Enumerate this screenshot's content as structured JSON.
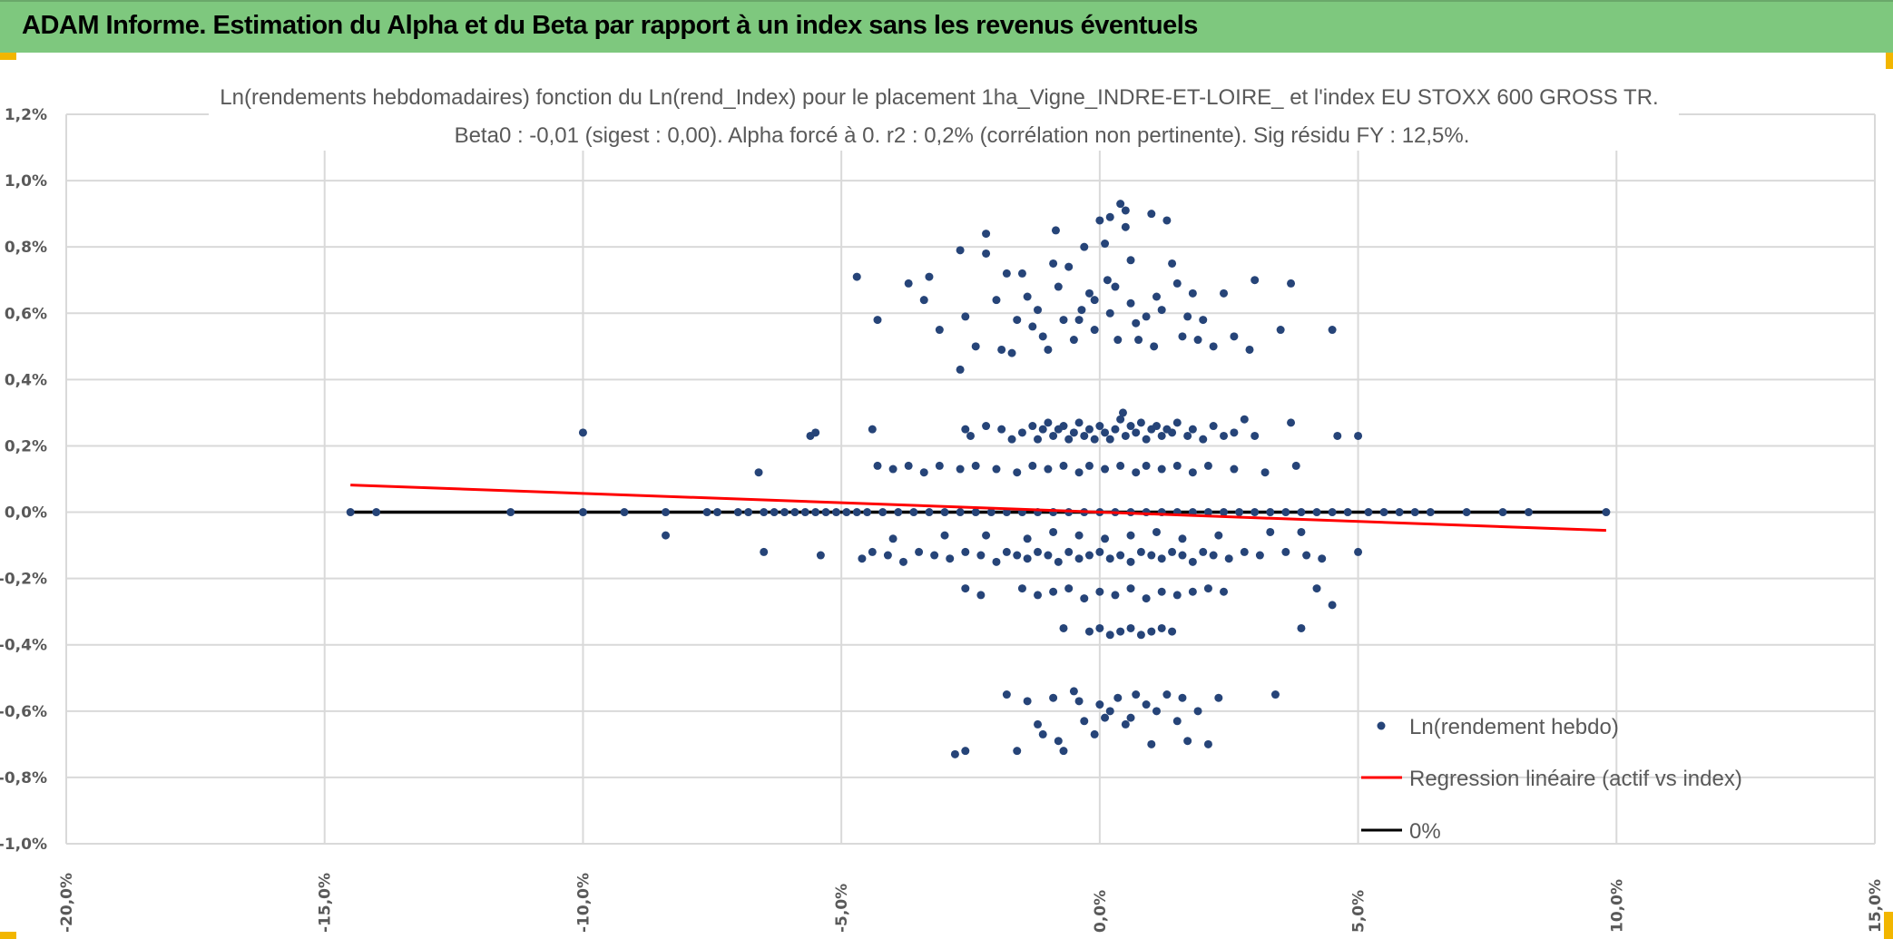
{
  "header": {
    "title": "ADAM Informe. Estimation du Alpha et du Beta par rapport à un index sans les revenus éventuels"
  },
  "colors": {
    "header_bg": "#7ec87e",
    "points": "#264478",
    "regression": "#ff0000",
    "zero_line": "#000000",
    "accent": "#f2b600"
  },
  "chart_data": {
    "type": "scatter",
    "title": "Ln(rendements hebdomadaires) fonction du Ln(rend_Index) pour le placement 1ha_Vigne_INDRE-ET-LOIRE_ et l'index EU STOXX 600 GROSS TR.",
    "subtitle": "Beta0 : -0,01 (sigest : 0,00). Alpha forcé à 0. r2 : 0,2% (corrélation non pertinente). Sig résidu FY : 12,5%.",
    "xlim": [
      -20,
      15
    ],
    "ylim": [
      -1.0,
      1.2
    ],
    "x_unit": "%",
    "y_unit": "%",
    "x_ticks": [
      "-20,0%",
      "-15,0%",
      "-10,0%",
      "-5,0%",
      "0,0%",
      "5,0%",
      "10,0%",
      "15,0%"
    ],
    "y_ticks": [
      "1,2%",
      "1,0%",
      "0,8%",
      "0,6%",
      "0,4%",
      "0,2%",
      "0,0%",
      "-0,2%",
      "-0,4%",
      "-0,6%",
      "-0,8%",
      "-1,0%"
    ],
    "grid": true,
    "legend_position": "bottom-right",
    "legend": [
      "Ln(rendement hebdo)",
      "Regression linéaire (actif vs index)",
      "0%"
    ],
    "regression_line": {
      "x": [
        -14.5,
        9.8
      ],
      "y": [
        0.082,
        -0.055
      ]
    },
    "zero_line": {
      "x": [
        -14.5,
        9.8
      ],
      "y": [
        0,
        0
      ]
    },
    "points": [
      [
        -4.7,
        0.71
      ],
      [
        -4.3,
        0.58
      ],
      [
        -3.7,
        0.69
      ],
      [
        -3.4,
        0.64
      ],
      [
        -3.3,
        0.71
      ],
      [
        -3.1,
        0.55
      ],
      [
        -2.7,
        0.79
      ],
      [
        -2.7,
        0.43
      ],
      [
        -2.4,
        0.5
      ],
      [
        -2.6,
        0.59
      ],
      [
        -2.2,
        0.84
      ],
      [
        -2.2,
        0.78
      ],
      [
        -2.0,
        0.64
      ],
      [
        -1.9,
        0.49
      ],
      [
        -1.8,
        0.72
      ],
      [
        -1.7,
        0.48
      ],
      [
        -1.6,
        0.58
      ],
      [
        -1.5,
        0.72
      ],
      [
        -1.3,
        0.56
      ],
      [
        -1.4,
        0.65
      ],
      [
        -1.2,
        0.61
      ],
      [
        -1.1,
        0.53
      ],
      [
        -1.0,
        0.49
      ],
      [
        -0.9,
        0.75
      ],
      [
        -0.85,
        0.85
      ],
      [
        -0.8,
        0.68
      ],
      [
        -0.7,
        0.58
      ],
      [
        -0.6,
        0.74
      ],
      [
        -0.5,
        0.52
      ],
      [
        -0.4,
        0.58
      ],
      [
        -0.3,
        0.8
      ],
      [
        -0.2,
        0.66
      ],
      [
        -0.1,
        0.64
      ],
      [
        0.0,
        0.88
      ],
      [
        -0.1,
        0.55
      ],
      [
        0.1,
        0.81
      ],
      [
        0.2,
        0.89
      ],
      [
        0.2,
        0.6
      ],
      [
        0.3,
        0.68
      ],
      [
        0.35,
        0.52
      ],
      [
        0.4,
        0.93
      ],
      [
        0.5,
        0.86
      ],
      [
        0.5,
        0.91
      ],
      [
        0.6,
        0.76
      ],
      [
        0.6,
        0.63
      ],
      [
        0.7,
        0.57
      ],
      [
        0.75,
        0.52
      ],
      [
        1.0,
        0.9
      ],
      [
        1.1,
        0.65
      ],
      [
        1.2,
        0.61
      ],
      [
        1.4,
        0.75
      ],
      [
        1.5,
        0.69
      ],
      [
        1.6,
        0.53
      ],
      [
        1.7,
        0.59
      ],
      [
        1.8,
        0.66
      ],
      [
        1.9,
        0.52
      ],
      [
        2.0,
        0.58
      ],
      [
        2.2,
        0.5
      ],
      [
        2.4,
        0.66
      ],
      [
        2.6,
        0.53
      ],
      [
        2.9,
        0.49
      ],
      [
        3.0,
        0.7
      ],
      [
        3.5,
        0.55
      ],
      [
        3.7,
        0.69
      ],
      [
        4.5,
        0.55
      ],
      [
        1.3,
        0.88
      ],
      [
        0.9,
        0.59
      ],
      [
        1.05,
        0.5
      ],
      [
        -0.35,
        0.61
      ],
      [
        0.15,
        0.7
      ],
      [
        -10.0,
        0.24
      ],
      [
        -5.6,
        0.23
      ],
      [
        -5.5,
        0.24
      ],
      [
        -4.4,
        0.25
      ],
      [
        -2.6,
        0.25
      ],
      [
        -2.5,
        0.23
      ],
      [
        -2.2,
        0.26
      ],
      [
        -1.9,
        0.25
      ],
      [
        -1.7,
        0.22
      ],
      [
        -1.5,
        0.24
      ],
      [
        -1.3,
        0.26
      ],
      [
        -1.2,
        0.22
      ],
      [
        -1.1,
        0.25
      ],
      [
        -1.0,
        0.27
      ],
      [
        -0.9,
        0.23
      ],
      [
        -0.8,
        0.25
      ],
      [
        -0.7,
        0.26
      ],
      [
        -0.6,
        0.22
      ],
      [
        -0.5,
        0.24
      ],
      [
        -0.4,
        0.27
      ],
      [
        -0.3,
        0.23
      ],
      [
        -0.2,
        0.25
      ],
      [
        -0.1,
        0.22
      ],
      [
        0.0,
        0.26
      ],
      [
        0.1,
        0.24
      ],
      [
        0.2,
        0.22
      ],
      [
        0.3,
        0.25
      ],
      [
        0.4,
        0.28
      ],
      [
        0.5,
        0.23
      ],
      [
        0.6,
        0.26
      ],
      [
        0.7,
        0.24
      ],
      [
        0.8,
        0.27
      ],
      [
        0.9,
        0.22
      ],
      [
        1.0,
        0.25
      ],
      [
        1.1,
        0.26
      ],
      [
        1.2,
        0.23
      ],
      [
        1.3,
        0.25
      ],
      [
        1.4,
        0.24
      ],
      [
        1.5,
        0.27
      ],
      [
        1.7,
        0.23
      ],
      [
        1.8,
        0.25
      ],
      [
        2.0,
        0.22
      ],
      [
        2.2,
        0.26
      ],
      [
        2.4,
        0.23
      ],
      [
        2.6,
        0.24
      ],
      [
        2.8,
        0.28
      ],
      [
        3.0,
        0.23
      ],
      [
        3.7,
        0.27
      ],
      [
        4.6,
        0.23
      ],
      [
        5.0,
        0.23
      ],
      [
        0.45,
        0.3
      ],
      [
        -6.6,
        0.12
      ],
      [
        -4.3,
        0.14
      ],
      [
        -4.0,
        0.13
      ],
      [
        -3.7,
        0.14
      ],
      [
        -3.4,
        0.12
      ],
      [
        -3.1,
        0.14
      ],
      [
        -2.7,
        0.13
      ],
      [
        -2.4,
        0.14
      ],
      [
        -2.0,
        0.13
      ],
      [
        -1.6,
        0.12
      ],
      [
        -1.3,
        0.14
      ],
      [
        -1.0,
        0.13
      ],
      [
        -0.7,
        0.14
      ],
      [
        -0.4,
        0.12
      ],
      [
        -0.2,
        0.14
      ],
      [
        0.1,
        0.13
      ],
      [
        0.4,
        0.14
      ],
      [
        0.7,
        0.12
      ],
      [
        0.9,
        0.14
      ],
      [
        1.2,
        0.13
      ],
      [
        1.5,
        0.14
      ],
      [
        1.8,
        0.12
      ],
      [
        2.1,
        0.14
      ],
      [
        2.6,
        0.13
      ],
      [
        3.2,
        0.12
      ],
      [
        3.8,
        0.14
      ],
      [
        -14.5,
        0
      ],
      [
        -14.0,
        0
      ],
      [
        -11.4,
        0
      ],
      [
        -10.0,
        0
      ],
      [
        -9.2,
        0
      ],
      [
        -8.4,
        0
      ],
      [
        -7.6,
        0
      ],
      [
        -7.4,
        0
      ],
      [
        -7.0,
        0
      ],
      [
        -6.8,
        0
      ],
      [
        -6.5,
        0
      ],
      [
        -6.3,
        0
      ],
      [
        -6.1,
        0
      ],
      [
        -5.9,
        0
      ],
      [
        -5.7,
        0
      ],
      [
        -5.5,
        0
      ],
      [
        -5.3,
        0
      ],
      [
        -5.1,
        0
      ],
      [
        -4.9,
        0
      ],
      [
        -4.7,
        0
      ],
      [
        -4.5,
        0
      ],
      [
        -4.2,
        0
      ],
      [
        -3.9,
        0
      ],
      [
        -3.6,
        0
      ],
      [
        -3.3,
        0
      ],
      [
        -3.0,
        0
      ],
      [
        -2.7,
        0
      ],
      [
        -2.4,
        0
      ],
      [
        -2.1,
        0
      ],
      [
        -1.8,
        0
      ],
      [
        -1.5,
        0
      ],
      [
        -1.2,
        0
      ],
      [
        -0.9,
        0
      ],
      [
        -0.6,
        0
      ],
      [
        -0.3,
        0
      ],
      [
        0.0,
        0
      ],
      [
        0.3,
        0
      ],
      [
        0.6,
        0
      ],
      [
        0.9,
        0
      ],
      [
        1.2,
        0
      ],
      [
        1.5,
        0
      ],
      [
        1.8,
        0
      ],
      [
        2.1,
        0
      ],
      [
        2.4,
        0
      ],
      [
        2.7,
        0
      ],
      [
        3.0,
        0
      ],
      [
        3.3,
        0
      ],
      [
        3.6,
        0
      ],
      [
        3.9,
        0
      ],
      [
        4.2,
        0
      ],
      [
        4.5,
        0
      ],
      [
        4.8,
        0
      ],
      [
        5.2,
        0
      ],
      [
        5.5,
        0
      ],
      [
        5.8,
        0
      ],
      [
        6.1,
        0
      ],
      [
        6.4,
        0
      ],
      [
        7.1,
        0
      ],
      [
        7.8,
        0
      ],
      [
        8.3,
        0
      ],
      [
        9.8,
        0
      ],
      [
        -8.4,
        -0.07
      ],
      [
        -4.0,
        -0.08
      ],
      [
        -3.0,
        -0.07
      ],
      [
        -2.2,
        -0.07
      ],
      [
        -1.4,
        -0.08
      ],
      [
        -0.9,
        -0.06
      ],
      [
        -0.4,
        -0.07
      ],
      [
        0.1,
        -0.08
      ],
      [
        0.6,
        -0.07
      ],
      [
        1.1,
        -0.06
      ],
      [
        1.6,
        -0.08
      ],
      [
        2.3,
        -0.07
      ],
      [
        3.3,
        -0.06
      ],
      [
        3.9,
        -0.06
      ],
      [
        -6.5,
        -0.12
      ],
      [
        -5.4,
        -0.13
      ],
      [
        -4.6,
        -0.14
      ],
      [
        -4.4,
        -0.12
      ],
      [
        -4.1,
        -0.13
      ],
      [
        -3.8,
        -0.15
      ],
      [
        -3.5,
        -0.12
      ],
      [
        -3.2,
        -0.13
      ],
      [
        -2.9,
        -0.14
      ],
      [
        -2.6,
        -0.12
      ],
      [
        -2.3,
        -0.13
      ],
      [
        -2.0,
        -0.15
      ],
      [
        -1.8,
        -0.12
      ],
      [
        -1.6,
        -0.13
      ],
      [
        -1.4,
        -0.14
      ],
      [
        -1.2,
        -0.12
      ],
      [
        -1.0,
        -0.13
      ],
      [
        -0.8,
        -0.15
      ],
      [
        -0.6,
        -0.12
      ],
      [
        -0.4,
        -0.14
      ],
      [
        -0.2,
        -0.13
      ],
      [
        0.0,
        -0.12
      ],
      [
        0.2,
        -0.14
      ],
      [
        0.4,
        -0.13
      ],
      [
        0.6,
        -0.15
      ],
      [
        0.8,
        -0.12
      ],
      [
        1.0,
        -0.13
      ],
      [
        1.2,
        -0.14
      ],
      [
        1.4,
        -0.12
      ],
      [
        1.6,
        -0.13
      ],
      [
        1.8,
        -0.15
      ],
      [
        2.0,
        -0.12
      ],
      [
        2.2,
        -0.13
      ],
      [
        2.5,
        -0.14
      ],
      [
        2.8,
        -0.12
      ],
      [
        3.1,
        -0.13
      ],
      [
        3.6,
        -0.12
      ],
      [
        4.0,
        -0.13
      ],
      [
        4.3,
        -0.14
      ],
      [
        5.0,
        -0.12
      ],
      [
        -2.6,
        -0.23
      ],
      [
        -2.3,
        -0.25
      ],
      [
        -1.5,
        -0.23
      ],
      [
        -1.2,
        -0.25
      ],
      [
        -0.9,
        -0.24
      ],
      [
        -0.6,
        -0.23
      ],
      [
        -0.3,
        -0.26
      ],
      [
        0.0,
        -0.24
      ],
      [
        0.3,
        -0.25
      ],
      [
        0.6,
        -0.23
      ],
      [
        0.9,
        -0.26
      ],
      [
        1.2,
        -0.24
      ],
      [
        1.5,
        -0.25
      ],
      [
        1.8,
        -0.24
      ],
      [
        2.1,
        -0.23
      ],
      [
        2.4,
        -0.24
      ],
      [
        4.2,
        -0.23
      ],
      [
        4.5,
        -0.28
      ],
      [
        -0.7,
        -0.35
      ],
      [
        -0.2,
        -0.36
      ],
      [
        0.0,
        -0.35
      ],
      [
        0.2,
        -0.37
      ],
      [
        0.4,
        -0.36
      ],
      [
        0.6,
        -0.35
      ],
      [
        0.8,
        -0.37
      ],
      [
        1.0,
        -0.36
      ],
      [
        1.2,
        -0.35
      ],
      [
        1.4,
        -0.36
      ],
      [
        3.9,
        -0.35
      ],
      [
        -2.8,
        -0.73
      ],
      [
        -2.6,
        -0.72
      ],
      [
        -1.8,
        -0.55
      ],
      [
        -1.6,
        -0.72
      ],
      [
        -1.4,
        -0.57
      ],
      [
        -1.2,
        -0.64
      ],
      [
        -1.1,
        -0.67
      ],
      [
        -0.9,
        -0.56
      ],
      [
        -0.8,
        -0.69
      ],
      [
        -0.7,
        -0.72
      ],
      [
        -0.5,
        -0.54
      ],
      [
        -0.4,
        -0.57
      ],
      [
        -0.3,
        -0.63
      ],
      [
        -0.1,
        -0.67
      ],
      [
        0.0,
        -0.58
      ],
      [
        0.1,
        -0.62
      ],
      [
        0.2,
        -0.6
      ],
      [
        0.35,
        -0.56
      ],
      [
        0.5,
        -0.64
      ],
      [
        0.6,
        -0.62
      ],
      [
        0.7,
        -0.55
      ],
      [
        0.9,
        -0.58
      ],
      [
        1.0,
        -0.7
      ],
      [
        1.1,
        -0.6
      ],
      [
        1.3,
        -0.55
      ],
      [
        1.5,
        -0.63
      ],
      [
        1.6,
        -0.56
      ],
      [
        1.7,
        -0.69
      ],
      [
        1.9,
        -0.6
      ],
      [
        2.1,
        -0.7
      ],
      [
        2.3,
        -0.56
      ],
      [
        3.4,
        -0.55
      ]
    ]
  }
}
